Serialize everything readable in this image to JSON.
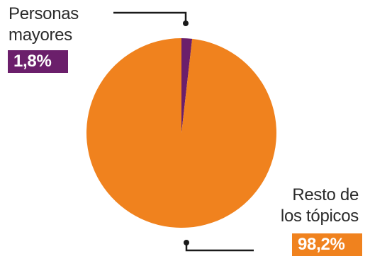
{
  "chart_data": {
    "type": "pie",
    "categories": [
      "Personas mayores",
      "Resto de los tópicos"
    ],
    "values": [
      1.8,
      98.2
    ],
    "unit": "%",
    "colors": [
      "#6b1f6b",
      "#f0821e"
    ],
    "labels": [
      {
        "lines": [
          "Personas",
          "mayores"
        ],
        "value_text": "1,8%"
      },
      {
        "lines": [
          "Resto de",
          "los tópicos"
        ],
        "value_text": "98,2%"
      }
    ],
    "legend": "none"
  },
  "colors": {
    "text": "#2b2b2b",
    "leader_line": "#1a1a1a"
  }
}
